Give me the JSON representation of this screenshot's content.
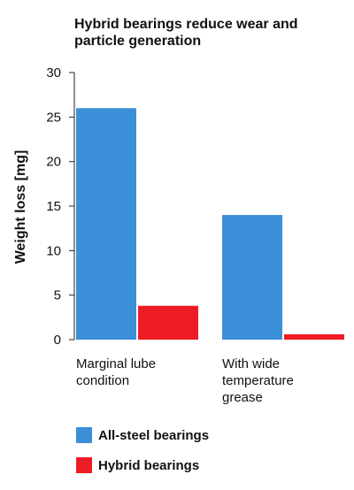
{
  "chart_data": {
    "type": "bar",
    "title": "Hybrid bearings reduce wear and particle generation",
    "xlabel": "",
    "ylabel": "Weight loss [mg]",
    "ylim": [
      0,
      30
    ],
    "yticks": [
      0,
      5,
      10,
      15,
      20,
      25,
      30
    ],
    "categories": [
      [
        "Marginal lube",
        "condition"
      ],
      [
        "With wide",
        "temperature",
        "grease"
      ]
    ],
    "series": [
      {
        "name": "All-steel bearings",
        "color": "#3a8fd8",
        "values": [
          26,
          14
        ]
      },
      {
        "name": "Hybrid bearings",
        "color": "#ed1c24",
        "values": [
          3.8,
          0.6
        ]
      }
    ],
    "grid": false,
    "legend_position": "bottom-left"
  }
}
